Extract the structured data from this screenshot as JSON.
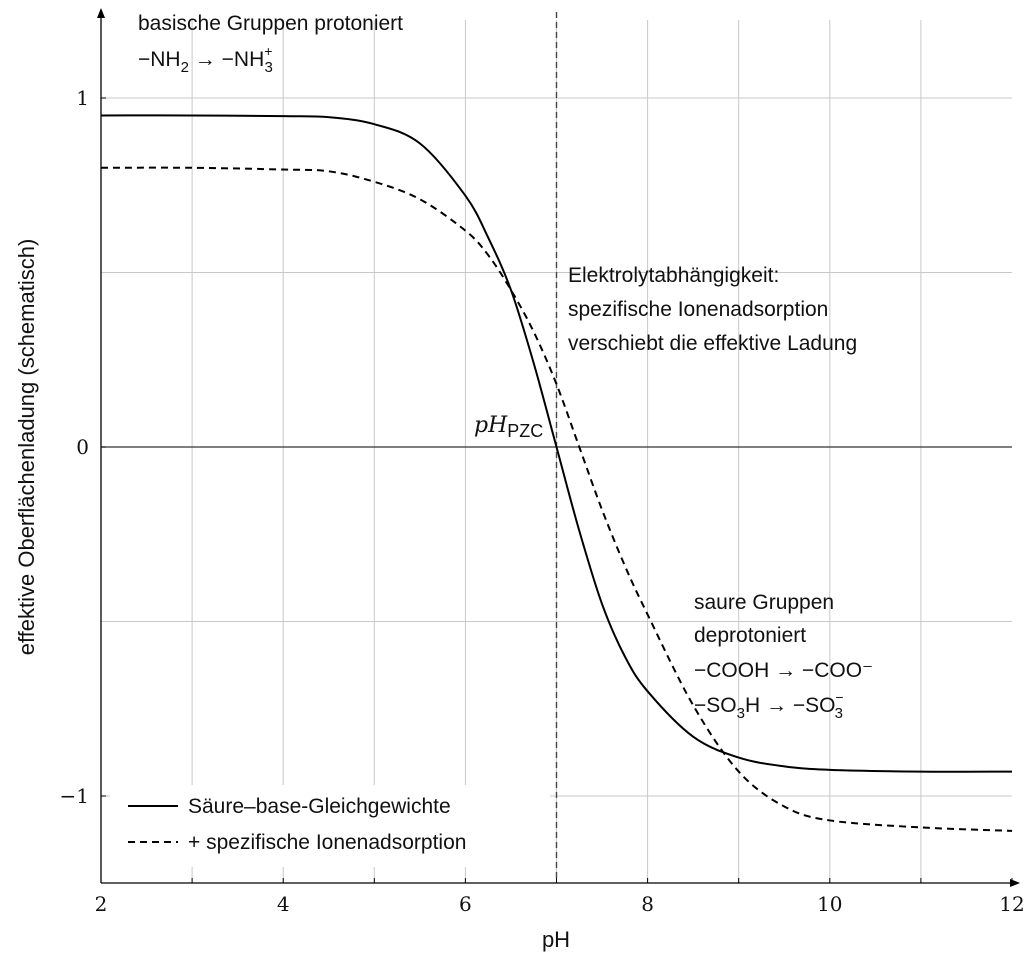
{
  "chart_data": {
    "type": "line",
    "xlabel": "pH",
    "ylabel": "effektive Oberflächenladung (schematisch)",
    "xlim": [
      2,
      12
    ],
    "ylim": [
      -1.25,
      1.25
    ],
    "xticks": [
      2,
      4,
      6,
      8,
      10,
      12
    ],
    "xtick_labels": [
      "2",
      "4",
      "6",
      "8",
      "10",
      "12"
    ],
    "yticks": [
      1,
      0,
      -1
    ],
    "ytick_labels": [
      "1",
      "0",
      "−1"
    ],
    "grid": true,
    "legend_position": "bottom-left",
    "series": [
      {
        "name": "Säure–base-Gleichgewichte",
        "style": "solid",
        "x": [
          2,
          3,
          4,
          4.5,
          5,
          5.5,
          6,
          6.25,
          6.5,
          6.75,
          7,
          7.25,
          7.5,
          7.75,
          8,
          8.5,
          9,
          9.5,
          10,
          11,
          12
        ],
        "y": [
          0.95,
          0.95,
          0.948,
          0.945,
          0.925,
          0.87,
          0.72,
          0.6,
          0.45,
          0.24,
          0.0,
          -0.24,
          -0.45,
          -0.6,
          -0.7,
          -0.83,
          -0.89,
          -0.915,
          -0.925,
          -0.93,
          -0.93
        ]
      },
      {
        "name": "+ spezifische Ionenadsorption",
        "style": "dashed",
        "x": [
          2,
          3,
          4,
          4.5,
          5,
          5.5,
          6,
          6.25,
          6.5,
          6.75,
          7,
          7.25,
          7.5,
          7.75,
          8,
          8.5,
          9,
          9.5,
          10,
          11,
          12
        ],
        "y": [
          0.8,
          0.8,
          0.795,
          0.79,
          0.76,
          0.71,
          0.62,
          0.55,
          0.45,
          0.33,
          0.18,
          0.0,
          -0.18,
          -0.34,
          -0.48,
          -0.74,
          -0.93,
          -1.03,
          -1.07,
          -1.09,
          -1.1
        ]
      }
    ],
    "vertical_line": {
      "x": 7.0,
      "style": "dashed"
    },
    "marker_label": {
      "main": "pH",
      "sub": "PZC",
      "x": 7.0,
      "y": 0.0
    },
    "annotations": [
      {
        "id": "basic",
        "lines": [
          "basische Gruppen protoniert"
        ],
        "formula": {
          "left": "−NH",
          "left_sub": "2",
          "arrow": "→",
          "right": "−NH",
          "right_sub": "3",
          "right_sup": "+"
        }
      },
      {
        "id": "electrolyte",
        "lines": [
          "Elektrolytabhängigkeit:",
          "spezifische Ionenadsorption",
          "verschiebt die effektive Ladung"
        ]
      },
      {
        "id": "acid",
        "lines": [
          "saure Gruppen",
          "deprotoniert"
        ],
        "formula_1": "−COOH → −COO⁻",
        "formula_2": {
          "left": "−SO",
          "left_sub": "3",
          "left_tail": "H",
          "arrow": "→",
          "right": "−SO",
          "right_sub": "3",
          "right_sup": "−"
        }
      }
    ]
  }
}
